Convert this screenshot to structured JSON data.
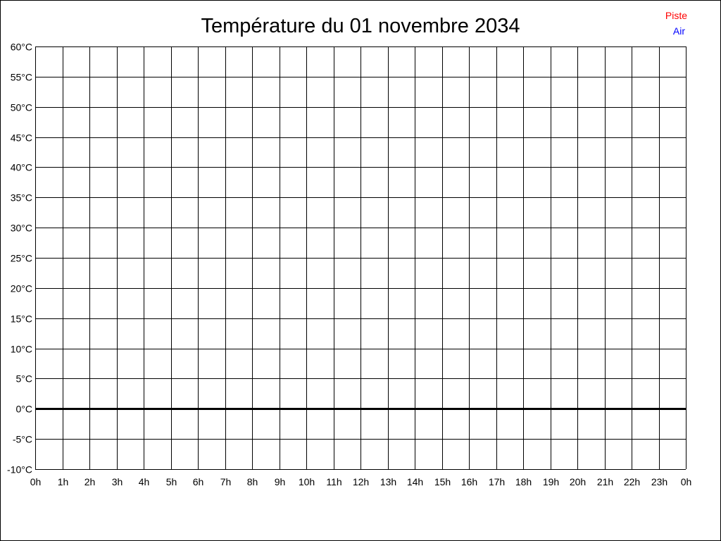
{
  "chart_data": {
    "type": "line",
    "title": "Température du 01 novembre 2034",
    "xlabel": "",
    "ylabel": "",
    "ylim": [
      -10,
      60
    ],
    "xlim": [
      0,
      24
    ],
    "y_ticks": [
      -10,
      -5,
      0,
      5,
      10,
      15,
      20,
      25,
      30,
      35,
      40,
      45,
      50,
      55,
      60
    ],
    "y_tick_labels": [
      "-10°C",
      "-5°C",
      "0°C",
      "5°C",
      "10°C",
      "15°C",
      "20°C",
      "25°C",
      "30°C",
      "35°C",
      "40°C",
      "45°C",
      "50°C",
      "55°C",
      "60°C"
    ],
    "x_tick_labels": [
      "0h",
      "1h",
      "2h",
      "3h",
      "4h",
      "5h",
      "6h",
      "7h",
      "8h",
      "9h",
      "10h",
      "11h",
      "12h",
      "13h",
      "14h",
      "15h",
      "16h",
      "17h",
      "18h",
      "19h",
      "20h",
      "21h",
      "22h",
      "23h",
      "0h"
    ],
    "grid": true,
    "zero_line_emphasized": true,
    "legend_position": "top-right",
    "series": [
      {
        "name": "Piste",
        "color": "#ff0000",
        "x": [],
        "y": []
      },
      {
        "name": "Air",
        "color": "#0000ff",
        "x": [],
        "y": []
      }
    ]
  }
}
